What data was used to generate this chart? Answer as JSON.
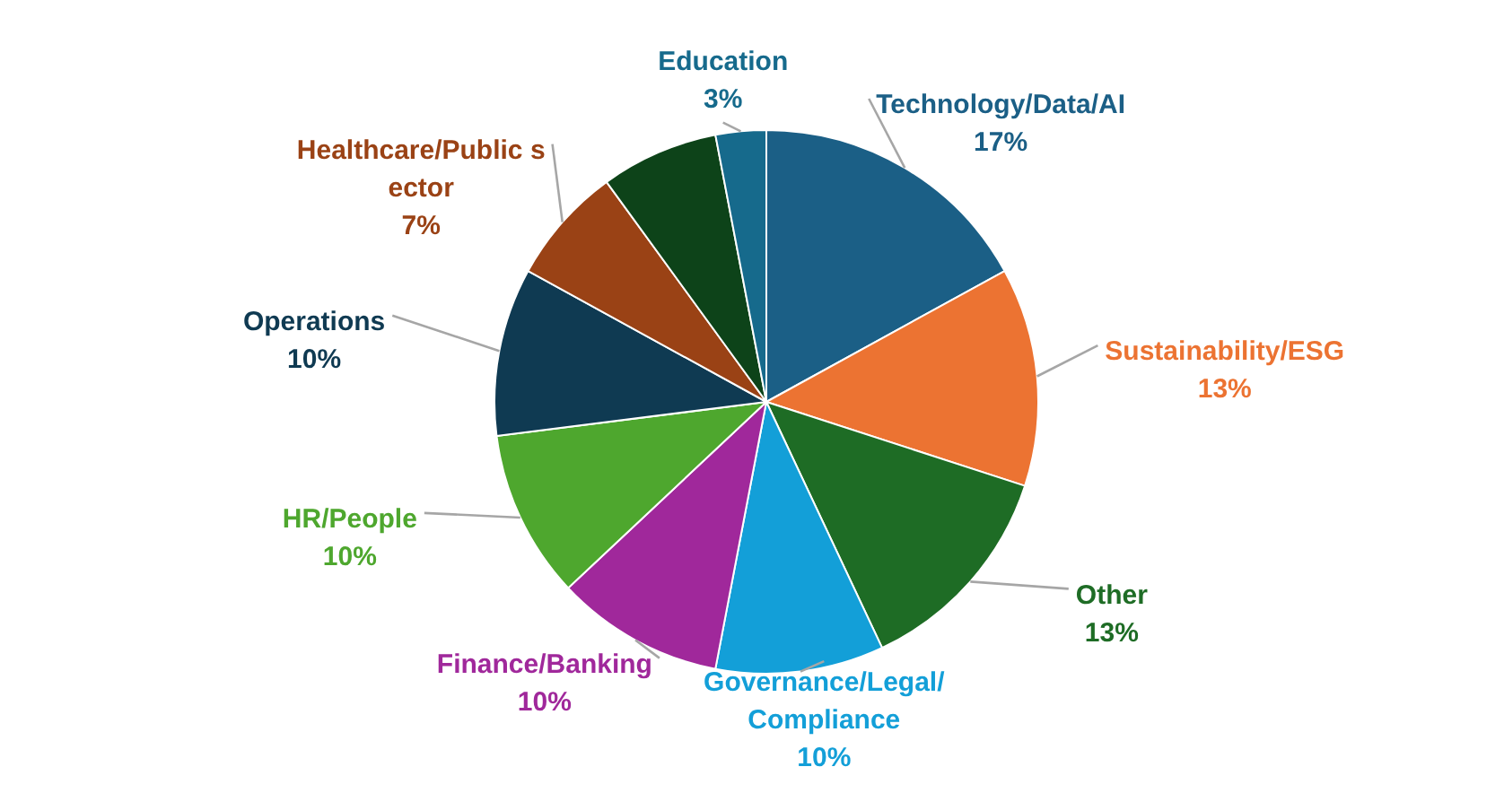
{
  "chart_data": {
    "type": "pie",
    "categories": [
      "Technology/Data/AI",
      "Sustainability/ESG",
      "Other",
      "Governance/Legal/Compliance",
      "Finance/Banking",
      "HR/People",
      "Operations",
      "Healthcare/Public sector",
      null,
      "Education"
    ],
    "values": [
      17,
      13,
      13,
      10,
      10,
      10,
      10,
      7,
      7,
      3
    ],
    "colors": [
      "#1b5f86",
      "#ec7332",
      "#1e6c25",
      "#139fd8",
      "#a0289b",
      "#4ea72e",
      "#0f3a52",
      "#9a4215",
      "#0d4319",
      "#166a8c"
    ],
    "value_labels": [
      "17%",
      "13%",
      "13%",
      "10%",
      "10%",
      "10%",
      "10%",
      "7%",
      null,
      "3%"
    ],
    "legend": false
  }
}
